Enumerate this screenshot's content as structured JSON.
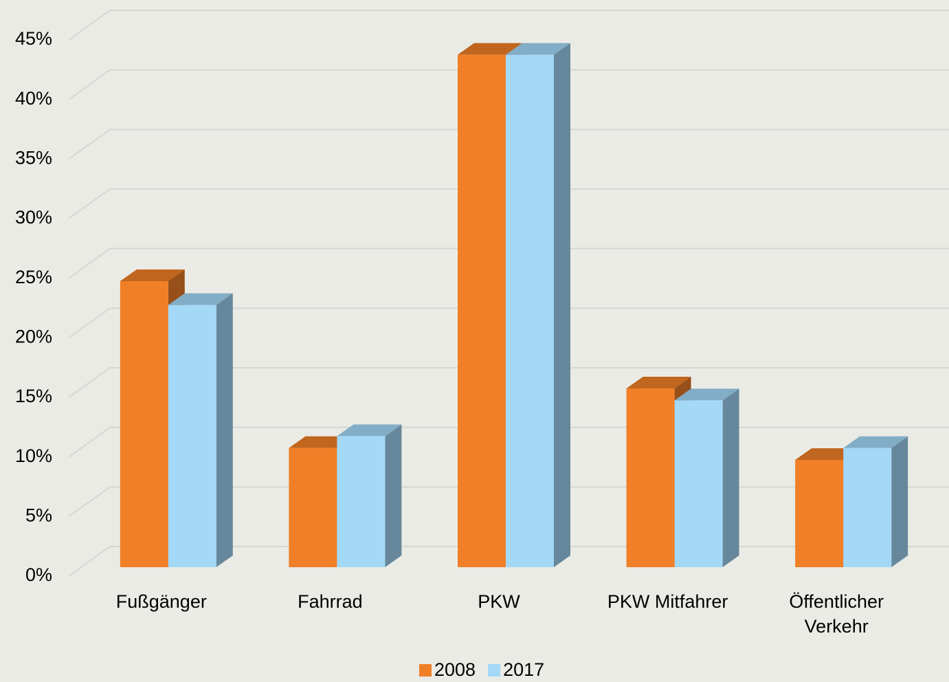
{
  "chart_data": {
    "type": "bar3d",
    "categories": [
      "Fußgänger",
      "Fahrrad",
      "PKW",
      "PKW Mitfahrer",
      "Öffentlicher Verkehr"
    ],
    "series": [
      {
        "name": "2008",
        "color": "#f07f27",
        "values": [
          24,
          10,
          43,
          15,
          9
        ]
      },
      {
        "name": "2017",
        "color": "#a3d8f7",
        "values": [
          22,
          11,
          43,
          14,
          10
        ]
      }
    ],
    "ylim": [
      0,
      45
    ],
    "yticks": [
      {
        "value": 0,
        "label": "0%"
      },
      {
        "value": 5,
        "label": "5%"
      },
      {
        "value": 10,
        "label": "10%"
      },
      {
        "value": 15,
        "label": "15%"
      },
      {
        "value": 20,
        "label": "20%"
      },
      {
        "value": 25,
        "label": "25%"
      },
      {
        "value": 30,
        "label": "30%"
      },
      {
        "value": 35,
        "label": "35%"
      },
      {
        "value": 40,
        "label": "40%"
      },
      {
        "value": 45,
        "label": "45%"
      }
    ],
    "grid": true,
    "legend": "bottom"
  }
}
